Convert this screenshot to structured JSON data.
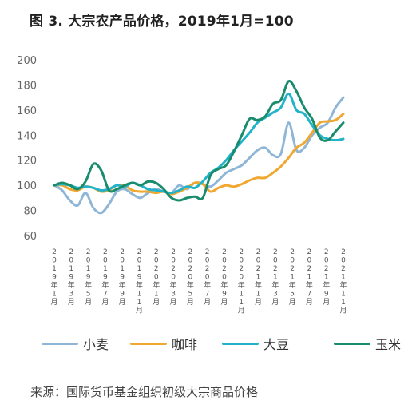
{
  "title": "图 3. 大宗农产品价格，2019年1月=100",
  "source": "来源：国际货币基金组织初级大宗商品价格",
  "chart_data": {
    "type": "line",
    "title": "图 3. 大宗农产品价格，2019年1月=100",
    "xlabel": "",
    "ylabel": "",
    "ylim": [
      60,
      200
    ],
    "yticks": [
      "200",
      "180",
      "160",
      "140",
      "120",
      "100",
      "80",
      "60"
    ],
    "grid": false,
    "legend_position": "bottom",
    "x_tick_labels": [
      "2019年1月",
      "2019年3月",
      "2019年5月",
      "2019年7月",
      "2019年9月",
      "2019年11月",
      "2020年1月",
      "2020年3月",
      "2020年5月",
      "2020年7月",
      "2020年9月",
      "2020年11月",
      "2021年1月",
      "2021年3月",
      "2021年5月",
      "2021年7月",
      "2021年9月",
      "2021年11月"
    ],
    "series": [
      {
        "name": "小麦",
        "color": "#8fb6d6",
        "values": [
          100,
          96,
          88,
          84,
          94,
          82,
          78,
          85,
          95,
          97,
          93,
          90,
          94,
          97,
          95,
          94,
          100,
          97,
          102,
          101,
          99,
          104,
          110,
          113,
          116,
          122,
          128,
          130,
          124,
          125,
          150,
          128,
          130,
          140,
          146,
          150,
          162,
          170
        ]
      },
      {
        "name": "咖啡",
        "color": "#f0a830",
        "values": [
          100,
          100,
          97,
          96,
          99,
          98,
          95,
          96,
          100,
          100,
          96,
          95,
          95,
          94,
          95,
          93,
          95,
          98,
          102,
          101,
          95,
          98,
          100,
          99,
          101,
          104,
          106,
          106,
          110,
          115,
          122,
          130,
          134,
          142,
          150,
          151,
          152,
          157
        ]
      },
      {
        "name": "大豆",
        "color": "#22b3c8",
        "values": [
          100,
          101,
          100,
          98,
          99,
          98,
          96,
          97,
          100,
          99,
          102,
          100,
          97,
          96,
          95,
          94,
          96,
          99,
          98,
          103,
          110,
          114,
          120,
          128,
          135,
          142,
          150,
          154,
          158,
          162,
          173,
          160,
          157,
          148,
          140,
          137,
          136,
          137
        ]
      },
      {
        "name": "玉米",
        "color": "#1a8c6e",
        "values": [
          100,
          102,
          100,
          97,
          103,
          117,
          112,
          96,
          97,
          100,
          102,
          100,
          103,
          102,
          97,
          90,
          88,
          90,
          91,
          90,
          108,
          113,
          116,
          127,
          140,
          153,
          152,
          155,
          165,
          168,
          183,
          175,
          162,
          153,
          138,
          136,
          143,
          150
        ]
      }
    ]
  }
}
